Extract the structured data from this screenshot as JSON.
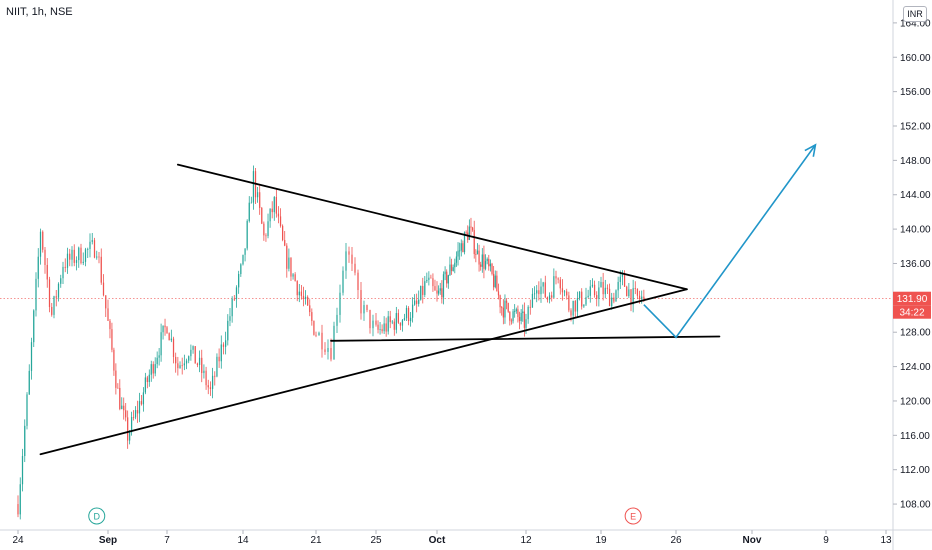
{
  "header": {
    "symbol_title": "NIIT, 1h, NSE",
    "currency": "INR"
  },
  "price_badges": {
    "last_price": "131.90",
    "countdown": "34:22",
    "color": "#ef5350"
  },
  "events": [
    {
      "label": "D",
      "date": "2020-08-31",
      "color": "#26a69a"
    },
    {
      "label": "E",
      "date": "2020-10-22",
      "color": "#ef5350"
    }
  ],
  "chart_data": {
    "type": "candlestick",
    "title": "NIIT, 1h, NSE",
    "interval": "1h",
    "x_ticks": [
      "24",
      "Sep",
      "7",
      "14",
      "21",
      "25",
      "Oct",
      "12",
      "19",
      "26",
      "Nov",
      "9",
      "13"
    ],
    "x_tick_dates": [
      "2020-08-24",
      "2020-09-01",
      "2020-09-07",
      "2020-09-14",
      "2020-09-21",
      "2020-09-25",
      "2020-10-01",
      "2020-10-12",
      "2020-10-19",
      "2020-10-26",
      "2020-11-02",
      "2020-11-09",
      "2020-11-13"
    ],
    "y_ticks": [
      "108.00",
      "112.00",
      "116.00",
      "120.00",
      "124.00",
      "128.00",
      "132.00",
      "136.00",
      "140.00",
      "144.00",
      "148.00",
      "152.00",
      "156.00",
      "160.00",
      "164.00"
    ],
    "ylim": [
      104.4,
      165.5
    ],
    "y_axis_side": "right",
    "grid": false,
    "last_price": 131.9,
    "colors": {
      "up": "#26a69a",
      "down": "#ef5350",
      "trendline": "#000000",
      "projection": "#2196c9"
    },
    "price_path": [
      [
        "2020-08-24",
        108.0
      ],
      [
        "2020-08-25",
        123.0
      ],
      [
        "2020-08-26",
        140.0
      ],
      [
        "2020-08-27",
        130.0
      ],
      [
        "2020-08-28",
        136.0
      ],
      [
        "2020-08-31",
        138.0
      ],
      [
        "2020-09-01",
        129.0
      ],
      [
        "2020-09-02",
        121.0
      ],
      [
        "2020-09-03",
        116.0
      ],
      [
        "2020-09-04",
        119.0
      ],
      [
        "2020-09-07",
        129.0
      ],
      [
        "2020-09-08",
        124.0
      ],
      [
        "2020-09-09",
        126.0
      ],
      [
        "2020-09-10",
        124.0
      ],
      [
        "2020-09-11",
        121.0
      ],
      [
        "2020-09-14",
        136.0
      ],
      [
        "2020-09-15",
        146.0
      ],
      [
        "2020-09-16",
        139.0
      ],
      [
        "2020-09-17",
        143.0
      ],
      [
        "2020-09-18",
        137.0
      ],
      [
        "2020-09-21",
        128.0
      ],
      [
        "2020-09-22",
        126.0
      ],
      [
        "2020-09-23",
        138.0
      ],
      [
        "2020-09-24",
        131.0
      ],
      [
        "2020-09-25",
        128.0
      ],
      [
        "2020-09-28",
        130.0
      ],
      [
        "2020-09-29",
        131.0
      ],
      [
        "2020-09-30",
        134.0
      ],
      [
        "2020-10-01",
        132.0
      ],
      [
        "2020-10-05",
        140.0
      ],
      [
        "2020-10-06",
        137.0
      ],
      [
        "2020-10-07",
        136.0
      ],
      [
        "2020-10-08",
        134.0
      ],
      [
        "2020-10-09",
        131.0
      ],
      [
        "2020-10-12",
        129.0
      ],
      [
        "2020-10-13",
        134.0
      ],
      [
        "2020-10-14",
        132.0
      ],
      [
        "2020-10-15",
        135.0
      ],
      [
        "2020-10-16",
        131.0
      ],
      [
        "2020-10-19",
        133.0
      ],
      [
        "2020-10-20",
        132.0
      ],
      [
        "2020-10-21",
        134.0
      ],
      [
        "2020-10-22",
        132.0
      ],
      [
        "2020-10-23",
        131.9
      ]
    ],
    "drawings": {
      "upper_trendline": [
        [
          "2020-09-08",
          147.5
        ],
        [
          "2020-10-27",
          133.0
        ]
      ],
      "lower_trendline": [
        [
          "2020-08-26",
          113.8
        ],
        [
          "2020-10-27",
          133.0
        ]
      ],
      "support_line": [
        [
          "2020-09-22",
          127.0
        ],
        [
          "2020-10-30",
          127.5
        ]
      ],
      "projection_path": [
        [
          "2020-10-23",
          131.2
        ],
        [
          "2020-10-26",
          127.4
        ],
        [
          "2020-11-08",
          149.8
        ]
      ]
    }
  }
}
